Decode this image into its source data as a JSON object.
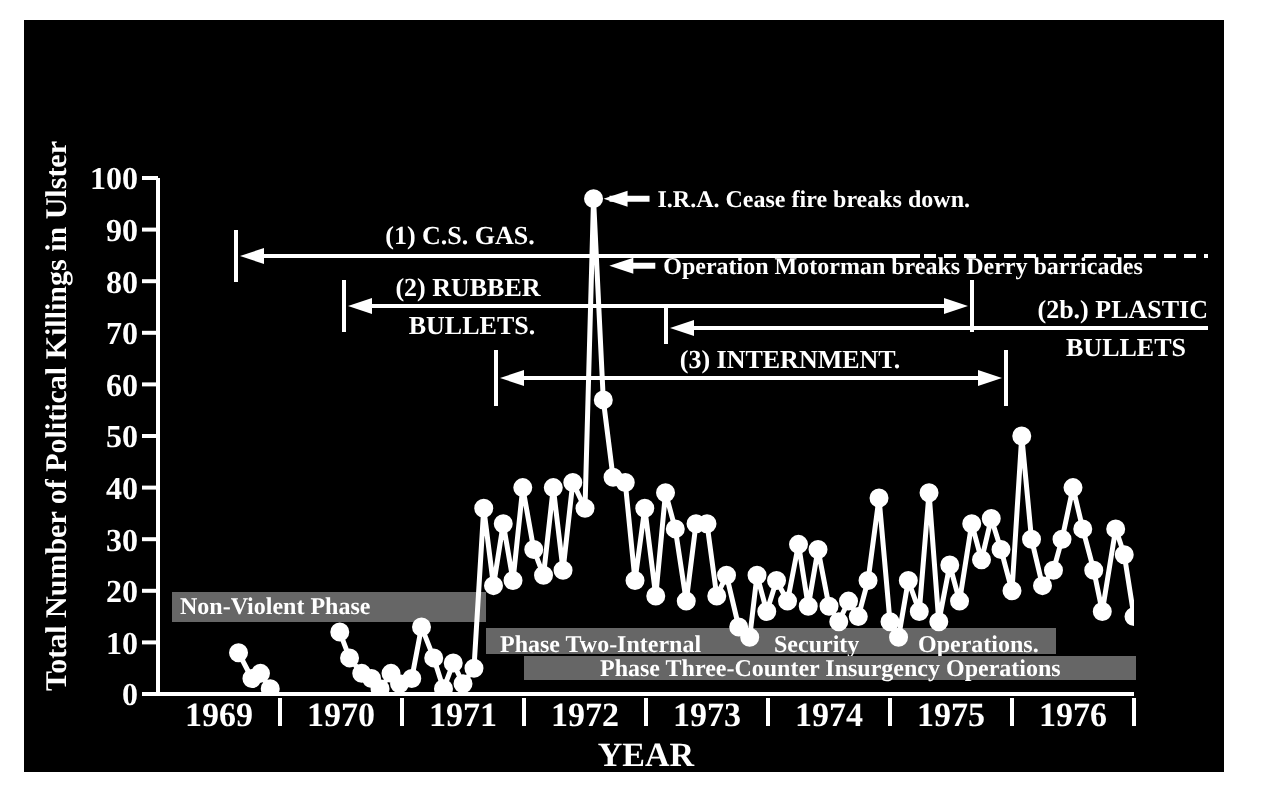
{
  "chart_data": {
    "type": "line",
    "xlabel": "YEAR",
    "ylabel": "Total Number of Political Killings in Ulster",
    "xlim": [
      1969,
      1977
    ],
    "xticks": [
      {
        "value": 1969.5,
        "label": "1969"
      },
      {
        "value": 1970,
        "label": null
      },
      {
        "value": 1970.5,
        "label": "1970"
      },
      {
        "value": 1971,
        "label": null
      },
      {
        "value": 1971.5,
        "label": "1971"
      },
      {
        "value": 1972,
        "label": null
      },
      {
        "value": 1972.5,
        "label": "1972"
      },
      {
        "value": 1973,
        "label": null
      },
      {
        "value": 1973.5,
        "label": "1973"
      },
      {
        "value": 1974,
        "label": null
      },
      {
        "value": 1974.5,
        "label": "1974"
      },
      {
        "value": 1975,
        "label": null
      },
      {
        "value": 1975.5,
        "label": "1975"
      },
      {
        "value": 1976,
        "label": null
      },
      {
        "value": 1976.5,
        "label": "1976"
      },
      {
        "value": 1977,
        "label": null
      }
    ],
    "ylim": [
      0,
      100
    ],
    "yticks": [
      0,
      10,
      20,
      30,
      40,
      50,
      60,
      70,
      80,
      90,
      100
    ],
    "marker": "circle",
    "line_style": "solid",
    "series": [
      {
        "color": "#ffffff",
        "x": [
          1969.66,
          1969.77,
          1969.84,
          1969.92
        ],
        "values": [
          8,
          3,
          4,
          1
        ]
      },
      {
        "color": "#ffffff",
        "x": [
          1970.49,
          1970.57,
          1970.67,
          1970.75,
          1970.82,
          1970.91,
          1970.98,
          1971.08,
          1971.16,
          1971.26,
          1971.34,
          1971.42,
          1971.5,
          1971.59,
          1971.67,
          1971.75,
          1971.83,
          1971.91,
          1971.99,
          1972.08,
          1972.16,
          1972.24,
          1972.32,
          1972.4,
          1972.5,
          1972.57,
          1972.65,
          1972.73,
          1972.83,
          1972.91,
          1972.99,
          1973.08,
          1973.16,
          1973.24,
          1973.33,
          1973.41,
          1973.5,
          1973.58,
          1973.66,
          1973.76,
          1973.85,
          1973.91,
          1973.99,
          1974.07,
          1974.16,
          1974.25,
          1974.33,
          1974.41,
          1974.5,
          1974.58,
          1974.66,
          1974.74,
          1974.82,
          1974.91,
          1975.0,
          1975.07,
          1975.15,
          1975.24,
          1975.32,
          1975.4,
          1975.49,
          1975.57,
          1975.67,
          1975.75,
          1975.83,
          1975.91,
          1976.0,
          1976.08,
          1976.16,
          1976.25,
          1976.34,
          1976.41,
          1976.5,
          1976.58,
          1976.67,
          1976.74,
          1976.85,
          1976.92,
          1977.0
        ],
        "values": [
          12,
          7,
          4,
          3,
          1,
          4,
          2,
          3,
          13,
          7,
          1,
          6,
          2,
          5,
          36,
          21,
          33,
          22,
          40,
          28,
          23,
          40,
          24,
          41,
          36,
          96,
          57,
          42,
          41,
          22,
          36,
          19,
          39,
          32,
          18,
          33,
          33,
          19,
          23,
          13,
          11,
          23,
          16,
          22,
          18,
          29,
          17,
          28,
          17,
          14,
          18,
          15,
          22,
          38,
          14,
          11,
          22,
          16,
          39,
          14,
          25,
          18,
          33,
          26,
          34,
          28,
          20,
          50,
          30,
          21,
          24,
          30,
          40,
          32,
          24,
          16,
          32,
          27,
          15
        ]
      }
    ],
    "annotations": [
      {
        "text": "I.R.A. Cease fire breaks down.",
        "x": 1972.57,
        "y": 96
      },
      {
        "text": "Operation Motorman breaks Derry barricades",
        "x": 1972.65,
        "y": 83
      },
      "(1) C.S. GAS.",
      "(2) RUBBER BULLETS.",
      "(2b.) PLASTIC BULLETS",
      "(3) INTERNMENT.",
      "Non-Violent Phase",
      "Phase Two-Internal Security Operations.",
      "Phase Three-Counter Insurgency Operations"
    ]
  }
}
